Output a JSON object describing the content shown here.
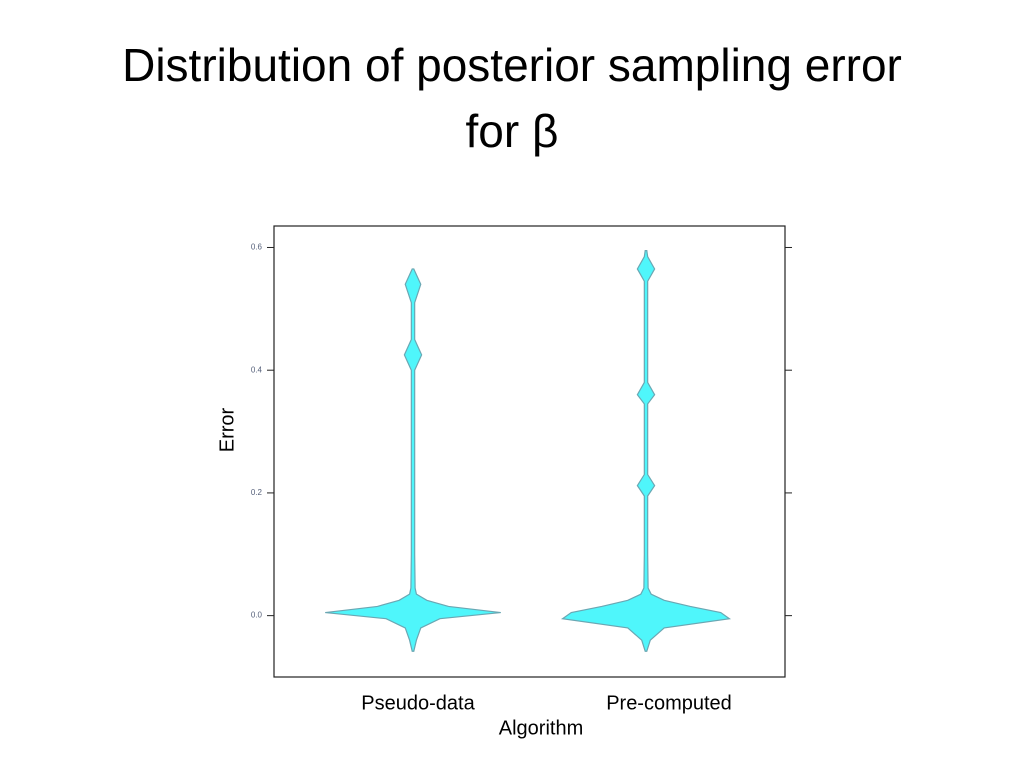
{
  "chart_data": {
    "type": "violin",
    "title": "Distribution of posterior sampling error for β",
    "y_label": "Error",
    "x_label": "Algorithm",
    "categories": [
      "Pseudo-data",
      "Pre-computed"
    ],
    "ylim": [
      -0.1,
      0.635
    ],
    "yticks": [
      {
        "value": 0,
        "label": "0.0"
      },
      0.2,
      0.4,
      0.6
    ],
    "color": "#4ff6fb",
    "series": [
      {
        "y": [
          -0.058,
          -0.04,
          -0.02,
          -0.005,
          0.005,
          0.015,
          0.025,
          0.035,
          0.045,
          0.1,
          0.4,
          0.425,
          0.45,
          0.51,
          0.54,
          0.565
        ],
        "density": [
          0,
          0.03,
          0.08,
          0.3,
          1,
          0.4,
          0.15,
          0.03,
          0.015,
          0.01,
          0.01,
          0.09,
          0.01,
          0.01,
          0.08,
          0
        ]
      },
      {
        "y": [
          -0.058,
          -0.04,
          -0.02,
          -0.005,
          0.005,
          0.015,
          0.025,
          0.035,
          0.045,
          0.1,
          0.195,
          0.212,
          0.23,
          0.345,
          0.36,
          0.38,
          0.545,
          0.565,
          0.585,
          0.595
        ],
        "density": [
          0,
          0.04,
          0.2,
          0.95,
          0.85,
          0.5,
          0.2,
          0.05,
          0.015,
          0.01,
          0.01,
          0.09,
          0.01,
          0.01,
          0.09,
          0.01,
          0.01,
          0.09,
          0.01,
          0
        ]
      }
    ]
  }
}
